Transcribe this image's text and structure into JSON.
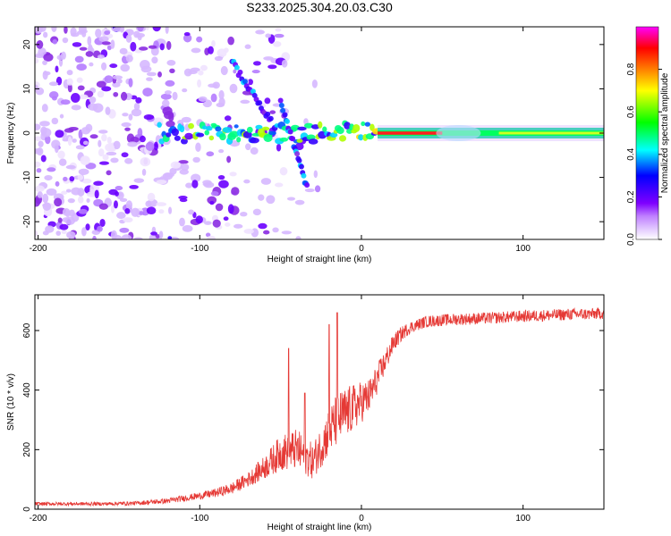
{
  "title": "S233.2025.304.20.03.C30",
  "chart_data": [
    {
      "type": "heatmap",
      "title": "S233.2025.304.20.03.C30",
      "xlabel": "Height of straight line (km)",
      "ylabel": "Frequency (Hz)",
      "xlim": [
        -202,
        150
      ],
      "ylim": [
        -24,
        24
      ],
      "x_ticks": [
        -200,
        -100,
        0,
        100
      ],
      "y_ticks": [
        -20,
        -10,
        0,
        10,
        20
      ],
      "colorbar": {
        "label": "Normalized spectral amplitude",
        "range": [
          0,
          1
        ],
        "ticks": [
          "0.0",
          "0.2",
          "0.4",
          "0.6",
          "0.8"
        ],
        "tick_values": [
          0.0,
          0.2,
          0.4,
          0.6,
          0.8
        ],
        "colors": [
          "#ffffff",
          "#e2c8ff",
          "#7f00ff",
          "#0000ff",
          "#00ffff",
          "#00ff00",
          "#ffff00",
          "#ff7f00",
          "#ff0000",
          "#ff00ff"
        ]
      },
      "features": [
        {
          "name": "scattered noise",
          "x_range": [
            -202,
            -30
          ],
          "freq_range": [
            -24,
            24
          ],
          "amplitude": 0.15
        },
        {
          "name": "main band",
          "x_range": [
            -125,
            150
          ],
          "freq": 0,
          "amplitude": 0.9
        },
        {
          "name": "upper descending streak",
          "from": [
            -80,
            16
          ],
          "to": [
            -55,
            2
          ],
          "amplitude": 0.4
        },
        {
          "name": "middle descending streak",
          "from": [
            -50,
            7
          ],
          "to": [
            -33,
            -13
          ],
          "amplitude": 0.4
        }
      ]
    },
    {
      "type": "line",
      "xlabel": "Height of straight line (km)",
      "ylabel": "SNR (10 * v/v)",
      "xlim": [
        -202,
        150
      ],
      "ylim": [
        0,
        720
      ],
      "x_ticks": [
        -200,
        -100,
        0,
        100
      ],
      "y_ticks": [
        0,
        200,
        400,
        600
      ],
      "color": "#e53935",
      "series": [
        {
          "name": "SNR",
          "x": [
            -200,
            -180,
            -160,
            -140,
            -120,
            -100,
            -90,
            -80,
            -70,
            -60,
            -50,
            -40,
            -30,
            -20,
            -15,
            -10,
            -5,
            0,
            5,
            10,
            15,
            20,
            25,
            30,
            40,
            50,
            60,
            70,
            80,
            90,
            100,
            110,
            120,
            130,
            140,
            150
          ],
          "values": [
            18,
            18,
            18,
            20,
            28,
            45,
            55,
            70,
            100,
            140,
            190,
            200,
            160,
            260,
            300,
            320,
            340,
            360,
            380,
            440,
            500,
            560,
            590,
            610,
            630,
            635,
            638,
            640,
            642,
            645,
            648,
            650,
            652,
            655,
            655,
            658
          ],
          "noise_amplitude": [
            6,
            6,
            6,
            7,
            9,
            12,
            15,
            20,
            25,
            40,
            60,
            70,
            60,
            80,
            90,
            90,
            80,
            70,
            60,
            50,
            40,
            30,
            25,
            20,
            20,
            20,
            20,
            20,
            20,
            20,
            20,
            20,
            20,
            20,
            20,
            20
          ],
          "peaks": [
            {
              "x": -45,
              "y": 540
            },
            {
              "x": -35,
              "y": 390
            },
            {
              "x": -20,
              "y": 620
            },
            {
              "x": -15,
              "y": 660
            }
          ]
        }
      ]
    }
  ]
}
